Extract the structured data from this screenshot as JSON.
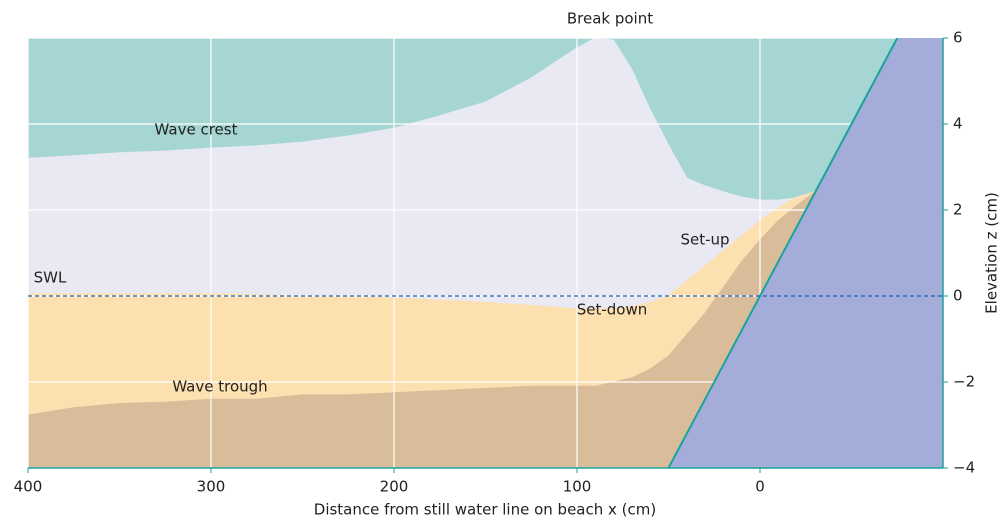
{
  "chart_data": {
    "type": "area",
    "x_label": "Distance from still water line on beach x (cm)",
    "y_label": "Elevation z (cm)",
    "annotations": [
      "Break point",
      "Wave crest",
      "Set-up",
      "SWL",
      "Set-down",
      "Wave trough"
    ],
    "x": [
      400,
      375,
      350,
      325,
      300,
      275,
      250,
      225,
      200,
      175,
      150,
      125,
      100,
      90,
      80,
      70,
      60,
      50,
      40,
      30,
      20,
      10,
      0,
      -10,
      -20,
      -30
    ],
    "series": [
      {
        "color": "#e9e9f3",
        "values": [
          3.2,
          3.26,
          3.33,
          3.37,
          3.44,
          3.49,
          3.58,
          3.72,
          3.9,
          4.19,
          4.51,
          5.07,
          5.77,
          6.0,
          5.95,
          5.26,
          4.33,
          3.51,
          2.74,
          2.56,
          2.42,
          2.3,
          2.23,
          2.23,
          2.28,
          2.42
        ]
      },
      {
        "color": "#fde0b0",
        "values": [
          0.05,
          0.05,
          0.05,
          0.05,
          0.05,
          0.03,
          0.0,
          -0.02,
          -0.05,
          -0.1,
          -0.15,
          -0.22,
          -0.3,
          -0.3,
          -0.3,
          -0.25,
          -0.15,
          0.0,
          0.35,
          0.7,
          1.05,
          1.4,
          1.75,
          2.05,
          2.3,
          2.42
        ]
      },
      {
        "color": "#d9bc9a",
        "values": [
          -2.77,
          -2.6,
          -2.5,
          -2.47,
          -2.4,
          -2.4,
          -2.3,
          -2.3,
          -2.25,
          -2.2,
          -2.15,
          -2.1,
          -2.1,
          -2.1,
          -2.0,
          -1.9,
          -1.7,
          -1.4,
          -0.9,
          -0.4,
          0.2,
          0.8,
          1.3,
          1.75,
          2.1,
          2.42
        ]
      }
    ],
    "top_color": "#a6d6d3",
    "beach": {
      "x": [
        50,
        -75
      ],
      "values": [
        -4,
        6
      ],
      "color": "#a4add9",
      "line_color": "#1aa39a"
    },
    "swl_color": "#1a5fb4",
    "xlim": [
      400,
      -100
    ],
    "xticks": [
      400,
      300,
      200,
      100,
      0
    ],
    "ylim": [
      -4,
      6
    ],
    "yticks": [
      {
        "value": -4,
        "label": "−4"
      },
      {
        "value": -2,
        "label": "−2"
      },
      0,
      2,
      4,
      6
    ],
    "grid": true
  }
}
